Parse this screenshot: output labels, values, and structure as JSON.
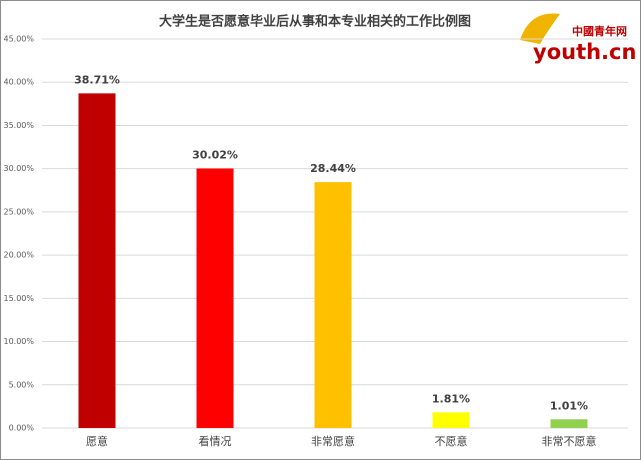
{
  "chart_data": {
    "type": "bar",
    "title": "大学生是否愿意毕业后从事和本专业相关的工作比例图",
    "logo": [
      "中國青年网",
      "youth.cn"
    ],
    "categories": [
      "愿意",
      "看情况",
      "非常愿意",
      "不愿意",
      "非常不愿意"
    ],
    "values": [
      38.71,
      30.02,
      28.44,
      1.81,
      1.01
    ],
    "value_labels": [
      "38.71%",
      "30.02%",
      "28.44%",
      "1.81%",
      "1.01%"
    ],
    "colors": [
      "#c00000",
      "#ff0000",
      "#ffc000",
      "#ffff00",
      "#92d050"
    ],
    "ylim": [
      0,
      45
    ],
    "yticks": [
      {
        "value": 0,
        "label": "0.00%"
      },
      {
        "value": 5,
        "label": "5.00%"
      },
      {
        "value": 10,
        "label": "10.00%"
      },
      {
        "value": 15,
        "label": "15.00%"
      },
      {
        "value": 20,
        "label": "20.00%"
      },
      {
        "value": 25,
        "label": "25.00%"
      },
      {
        "value": 30,
        "label": "30.00%"
      },
      {
        "value": 35,
        "label": "35.00%"
      },
      {
        "value": 40,
        "label": "40.00%"
      },
      {
        "value": 45,
        "label": "45.00%"
      }
    ],
    "grid": true
  }
}
